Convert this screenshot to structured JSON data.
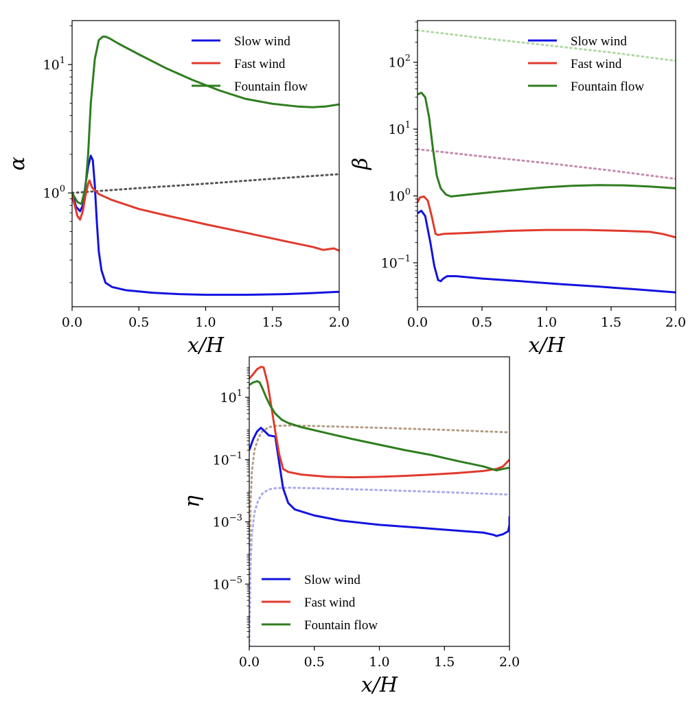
{
  "chart_data": [
    {
      "id": "alpha",
      "type": "line",
      "yscale": "log",
      "xlabel": "x/H",
      "ylabel": "α",
      "xlim": [
        0,
        2
      ],
      "ylim": [
        0.13,
        22
      ],
      "xticks": [
        {
          "value": 0,
          "label": "0.0"
        },
        {
          "value": 0.5,
          "label": "0.5"
        },
        {
          "value": 1,
          "label": "1.0"
        },
        {
          "value": 1.5,
          "label": "1.5"
        },
        {
          "value": 2,
          "label": "2.0"
        }
      ],
      "yticks": [
        {
          "value": 1,
          "label": "10",
          "sup": "0"
        },
        {
          "value": 10,
          "label": "10",
          "sup": "1"
        }
      ],
      "legend": {
        "position": "top-right",
        "entries": [
          "Slow wind",
          "Fast wind",
          "Fountain flow"
        ]
      },
      "series": [
        {
          "name": "Slow wind",
          "color": "#1212e0",
          "x": [
            0,
            0.03,
            0.06,
            0.08,
            0.1,
            0.12,
            0.14,
            0.155,
            0.17,
            0.185,
            0.2,
            0.22,
            0.25,
            0.3,
            0.4,
            0.6,
            0.8,
            1.0,
            1.3,
            1.6,
            1.8,
            1.9,
            2.0
          ],
          "y": [
            1.0,
            0.78,
            0.72,
            0.8,
            1.15,
            1.6,
            1.95,
            1.8,
            1.15,
            0.6,
            0.35,
            0.25,
            0.2,
            0.185,
            0.175,
            0.167,
            0.163,
            0.161,
            0.161,
            0.163,
            0.166,
            0.168,
            0.17
          ]
        },
        {
          "name": "Fast wind",
          "color": "#e03a2c",
          "x": [
            0,
            0.02,
            0.04,
            0.06,
            0.08,
            0.1,
            0.12,
            0.13,
            0.15,
            0.2,
            0.3,
            0.5,
            0.7,
            1.0,
            1.3,
            1.6,
            1.8,
            1.88,
            1.92,
            1.96,
            2.0
          ],
          "y": [
            0.95,
            0.8,
            0.66,
            0.62,
            0.72,
            0.95,
            1.18,
            1.25,
            1.1,
            0.98,
            0.88,
            0.75,
            0.67,
            0.57,
            0.49,
            0.42,
            0.38,
            0.36,
            0.365,
            0.37,
            0.355
          ]
        },
        {
          "name": "Fountain flow",
          "color": "#2e7d1e",
          "x": [
            0,
            0.04,
            0.07,
            0.1,
            0.12,
            0.14,
            0.17,
            0.2,
            0.23,
            0.25,
            0.28,
            0.35,
            0.5,
            0.7,
            0.9,
            1.1,
            1.3,
            1.5,
            1.7,
            1.8,
            1.9,
            2.0
          ],
          "y": [
            1.0,
            0.85,
            0.82,
            1.1,
            2.0,
            5.0,
            11.0,
            15.5,
            16.5,
            16.5,
            16.0,
            14.5,
            12.0,
            9.4,
            7.6,
            6.3,
            5.4,
            4.95,
            4.7,
            4.65,
            4.72,
            4.9
          ]
        },
        {
          "name": "reference",
          "color": "#555555",
          "dashed": true,
          "x": [
            0,
            0.5,
            1.0,
            1.5,
            2.0
          ],
          "y": [
            1.0,
            1.09,
            1.18,
            1.29,
            1.4
          ]
        }
      ]
    },
    {
      "id": "beta",
      "type": "line",
      "yscale": "log",
      "xlabel": "x/H",
      "ylabel": "β",
      "xlim": [
        0,
        2
      ],
      "ylim": [
        0.022,
        420
      ],
      "xticks": [
        {
          "value": 0,
          "label": "0.0"
        },
        {
          "value": 0.5,
          "label": "0.5"
        },
        {
          "value": 1,
          "label": "1.0"
        },
        {
          "value": 1.5,
          "label": "1.5"
        },
        {
          "value": 2,
          "label": "2.0"
        }
      ],
      "yticks": [
        {
          "value": 0.1,
          "label": "10",
          "sup": "−1"
        },
        {
          "value": 1,
          "label": "10",
          "sup": "0"
        },
        {
          "value": 10,
          "label": "10",
          "sup": "1"
        },
        {
          "value": 100,
          "label": "10",
          "sup": "2"
        }
      ],
      "legend": {
        "position": "top-right",
        "entries": [
          "Slow wind",
          "Fast wind",
          "Fountain flow"
        ]
      },
      "series": [
        {
          "name": "Slow wind",
          "color": "#1212e0",
          "x": [
            0,
            0.03,
            0.06,
            0.1,
            0.13,
            0.16,
            0.18,
            0.2,
            0.23,
            0.3,
            0.5,
            0.8,
            1.1,
            1.4,
            1.7,
            2.0
          ],
          "y": [
            0.55,
            0.6,
            0.5,
            0.2,
            0.09,
            0.055,
            0.053,
            0.058,
            0.063,
            0.063,
            0.058,
            0.053,
            0.048,
            0.044,
            0.04,
            0.036
          ]
        },
        {
          "name": "Fast wind",
          "color": "#e03a2c",
          "x": [
            0,
            0.02,
            0.05,
            0.08,
            0.11,
            0.14,
            0.16,
            0.2,
            0.4,
            0.7,
            1.0,
            1.3,
            1.6,
            1.8,
            1.9,
            2.0
          ],
          "y": [
            0.8,
            0.95,
            0.98,
            0.85,
            0.5,
            0.27,
            0.26,
            0.27,
            0.28,
            0.3,
            0.31,
            0.31,
            0.3,
            0.29,
            0.27,
            0.24
          ]
        },
        {
          "name": "Fountain flow",
          "color": "#2e7d1e",
          "x": [
            0,
            0.03,
            0.06,
            0.09,
            0.12,
            0.15,
            0.18,
            0.22,
            0.26,
            0.3,
            0.4,
            0.6,
            0.8,
            1.0,
            1.2,
            1.4,
            1.6,
            1.8,
            2.0
          ],
          "y": [
            33,
            35,
            30,
            15,
            5,
            2.0,
            1.3,
            1.05,
            0.98,
            1.0,
            1.05,
            1.15,
            1.25,
            1.35,
            1.42,
            1.45,
            1.44,
            1.38,
            1.3
          ]
        },
        {
          "name": "reference-1",
          "color": "#b0d8a4",
          "dashed": true,
          "x": [
            0,
            0.5,
            1.0,
            1.5,
            2.0
          ],
          "y": [
            300,
            230,
            180,
            140,
            105
          ]
        },
        {
          "name": "reference-2",
          "color": "#c58ab0",
          "dashed": true,
          "x": [
            0,
            0.5,
            1.0,
            1.5,
            2.0
          ],
          "y": [
            5.0,
            3.9,
            3.1,
            2.4,
            1.8
          ]
        }
      ]
    },
    {
      "id": "eta",
      "type": "line",
      "yscale": "log",
      "xlabel": "x/H",
      "ylabel": "η",
      "xlim": [
        0,
        2
      ],
      "ylim": [
        1e-07,
        200
      ],
      "xticks": [
        {
          "value": 0,
          "label": "0.0"
        },
        {
          "value": 0.5,
          "label": "0.5"
        },
        {
          "value": 1,
          "label": "1.0"
        },
        {
          "value": 1.5,
          "label": "1.5"
        },
        {
          "value": 2,
          "label": "2.0"
        }
      ],
      "yticks": [
        {
          "value": 1e-05,
          "label": "10",
          "sup": "−5"
        },
        {
          "value": 0.001,
          "label": "10",
          "sup": "−3"
        },
        {
          "value": 0.1,
          "label": "10",
          "sup": "−1"
        },
        {
          "value": 10,
          "label": "10",
          "sup": "1"
        }
      ],
      "legend": {
        "position": "bottom-left",
        "entries": [
          "Slow wind",
          "Fast wind",
          "Fountain flow"
        ]
      },
      "series": [
        {
          "name": "Slow wind",
          "color": "#1212e0",
          "x": [
            0,
            0.03,
            0.06,
            0.09,
            0.12,
            0.15,
            0.2,
            0.23,
            0.26,
            0.3,
            0.35,
            0.5,
            0.7,
            1.0,
            1.3,
            1.6,
            1.8,
            1.88,
            1.9,
            1.95,
            1.99,
            2.0,
            2.0
          ],
          "y": [
            0.2,
            0.45,
            0.8,
            1.05,
            0.8,
            0.6,
            0.55,
            0.08,
            0.012,
            0.004,
            0.0025,
            0.0016,
            0.0011,
            0.0008,
            0.00065,
            0.00052,
            0.00045,
            0.00038,
            0.00035,
            0.0004,
            0.0005,
            0.0008,
            0.0015
          ]
        },
        {
          "name": "Fast wind",
          "color": "#e03a2c",
          "x": [
            0,
            0.03,
            0.06,
            0.09,
            0.11,
            0.14,
            0.17,
            0.2,
            0.23,
            0.26,
            0.3,
            0.4,
            0.6,
            0.8,
            1.0,
            1.2,
            1.4,
            1.6,
            1.8,
            1.9,
            1.95,
            2.0
          ],
          "y": [
            40,
            55,
            80,
            95,
            92,
            30,
            5,
            0.8,
            0.15,
            0.05,
            0.04,
            0.033,
            0.028,
            0.027,
            0.028,
            0.03,
            0.033,
            0.037,
            0.043,
            0.05,
            0.06,
            0.1
          ]
        },
        {
          "name": "Fountain flow",
          "color": "#2e7d1e",
          "x": [
            0,
            0.03,
            0.06,
            0.08,
            0.1,
            0.13,
            0.16,
            0.2,
            0.25,
            0.3,
            0.4,
            0.6,
            0.8,
            1.0,
            1.2,
            1.4,
            1.6,
            1.8,
            1.9,
            1.95,
            2.0
          ],
          "y": [
            25,
            30,
            33,
            30,
            20,
            10,
            5.5,
            3.0,
            1.9,
            1.5,
            1.1,
            0.7,
            0.45,
            0.3,
            0.2,
            0.14,
            0.09,
            0.06,
            0.045,
            0.05,
            0.055
          ]
        },
        {
          "name": "reference-1",
          "color": "#b39e84",
          "dashed": true,
          "x": [
            0,
            0.005,
            0.01,
            0.02,
            0.04,
            0.07,
            0.1,
            0.15,
            0.2,
            0.3,
            0.5,
            1.0,
            1.5,
            2.0
          ],
          "y": [
            1e-07,
            0.0002,
            0.004,
            0.04,
            0.2,
            0.5,
            0.8,
            1.1,
            1.2,
            1.25,
            1.2,
            1.05,
            0.9,
            0.75
          ]
        },
        {
          "name": "reference-2",
          "color": "#aaaaee",
          "dashed": true,
          "x": [
            0,
            0.005,
            0.01,
            0.02,
            0.04,
            0.07,
            0.1,
            0.15,
            0.2,
            0.3,
            0.5,
            1.0,
            1.5,
            2.0
          ],
          "y": [
            1e-07,
            2e-06,
            4e-05,
            0.0004,
            0.002,
            0.005,
            0.008,
            0.011,
            0.012,
            0.0125,
            0.012,
            0.0105,
            0.009,
            0.0075
          ]
        }
      ]
    }
  ]
}
